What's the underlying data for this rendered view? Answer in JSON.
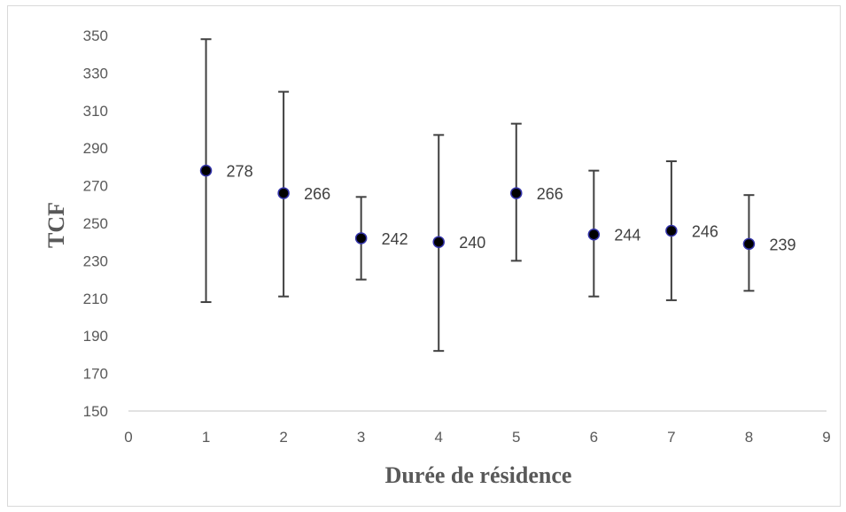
{
  "chart_data": {
    "type": "scatter",
    "title": "",
    "xlabel": "Durée de résidence",
    "ylabel": "TCF",
    "xlim": [
      0,
      9
    ],
    "ylim": [
      150,
      350
    ],
    "x_ticks": [
      "0",
      "1",
      "2",
      "3",
      "4",
      "5",
      "6",
      "7",
      "8",
      "9"
    ],
    "y_ticks": [
      "150",
      "170",
      "190",
      "210",
      "230",
      "250",
      "270",
      "290",
      "310",
      "330",
      "350"
    ],
    "grid": false,
    "legend": "none",
    "series": [
      {
        "x": [
          1,
          2,
          3,
          4,
          5,
          6,
          7,
          8
        ],
        "y": [
          278,
          266,
          242,
          240,
          266,
          244,
          246,
          239
        ],
        "error_low": [
          208,
          211,
          220,
          182,
          230,
          211,
          209,
          214
        ],
        "error_high": [
          348,
          320,
          264,
          297,
          303,
          278,
          283,
          265
        ],
        "labels": [
          "278",
          "266",
          "242",
          "240",
          "266",
          "244",
          "246",
          "239"
        ]
      }
    ],
    "colors": {
      "marker_fill": "#000000",
      "marker_edge": "#3333aa",
      "error_bar": "#404040",
      "axis": "#d9d9d9"
    }
  }
}
